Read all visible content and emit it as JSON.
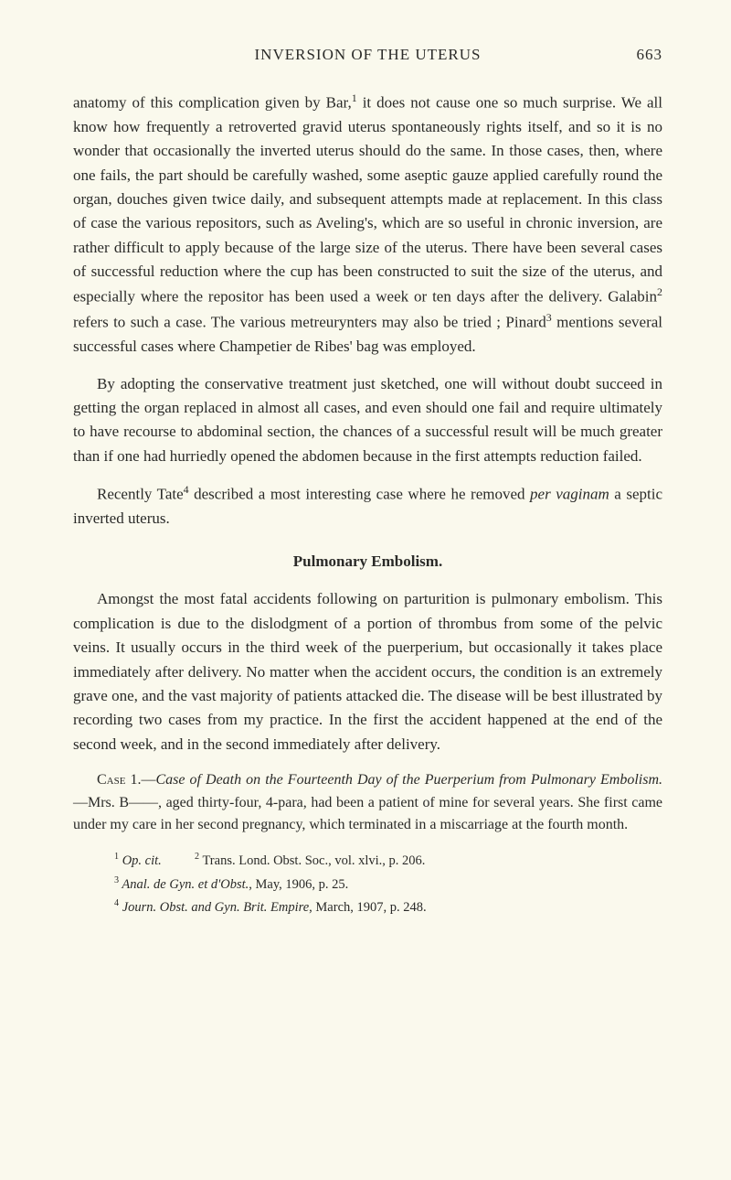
{
  "header": {
    "title": "INVERSION OF THE UTERUS",
    "pageNumber": "663"
  },
  "paragraphs": {
    "p1_part1": "anatomy of this complication given by Bar,",
    "p1_sup1": "1",
    "p1_part2": " it does not cause one so much surprise. We all know how frequently a retroverted gravid uterus spontaneously rights itself, and so it is no wonder that occasionally the inverted uterus should do the same. In those cases, then, where one fails, the part should be carefully washed, some aseptic gauze applied carefully round the organ, douches given twice daily, and subsequent attempts made at replacement. In this class of case the various repositors, such as Aveling's, which are so useful in chronic inversion, are rather difficult to apply because of the large size of the uterus. There have been several cases of successful reduction where the cup has been constructed to suit the size of the uterus, and especially where the repositor has been used a week or ten days after the delivery. Galabin",
    "p1_sup2": "2",
    "p1_part3": " refers to such a case. The various metreurynters may also be tried ; Pinard",
    "p1_sup3": "3",
    "p1_part4": " mentions several successful cases where Champetier de Ribes' bag was employed.",
    "p2": "By adopting the conservative treatment just sketched, one will without doubt succeed in getting the organ replaced in almost all cases, and even should one fail and require ultimately to have recourse to abdominal section, the chances of a successful result will be much greater than if one had hurriedly opened the abdomen because in the first attempts reduction failed.",
    "p3_part1": "Recently Tate",
    "p3_sup1": "4",
    "p3_part2": " described a most interesting case where he removed ",
    "p3_italic": "per vaginam",
    "p3_part3": " a septic inverted uterus.",
    "sectionHeading": "Pulmonary Embolism.",
    "p4": "Amongst the most fatal accidents following on parturition is pulmonary embolism. This complication is due to the dislodgment of a portion of thrombus from some of the pelvic veins. It usually occurs in the third week of the puerperium, but occasionally it takes place immediately after delivery. No matter when the accident occurs, the condition is an extremely grave one, and the vast majority of patients attacked die. The disease will be best illustrated by recording two cases from my practice. In the first the accident happened at the end of the second week, and in the second immediately after delivery.",
    "case_label": "Case",
    "case_num": " 1.—",
    "case_italic": "Case of Death on the Fourteenth Day of the Puerperium from Pulmonary Embolism.",
    "case_part2": "—Mrs. B——, aged thirty-four, 4-para, had been a patient of mine for several years. She first came under my care in her second pregnancy, which terminated in a miscarriage at the fourth month."
  },
  "footnotes": {
    "f1_sup": "1",
    "f1_italic": " Op. cit.",
    "f1_spacer": "          ",
    "f2_sup": "2",
    "f2_text": " Trans. Lond. Obst. Soc., vol. xlvi., p. 206.",
    "f3_sup": "3",
    "f3_italic": " Anal. de Gyn. et d'Obst.",
    "f3_text": ", May, 1906, p. 25.",
    "f4_sup": "4",
    "f4_italic": " Journ. Obst. and Gyn. Brit. Empire",
    "f4_text": ", March, 1907, p. 248."
  }
}
